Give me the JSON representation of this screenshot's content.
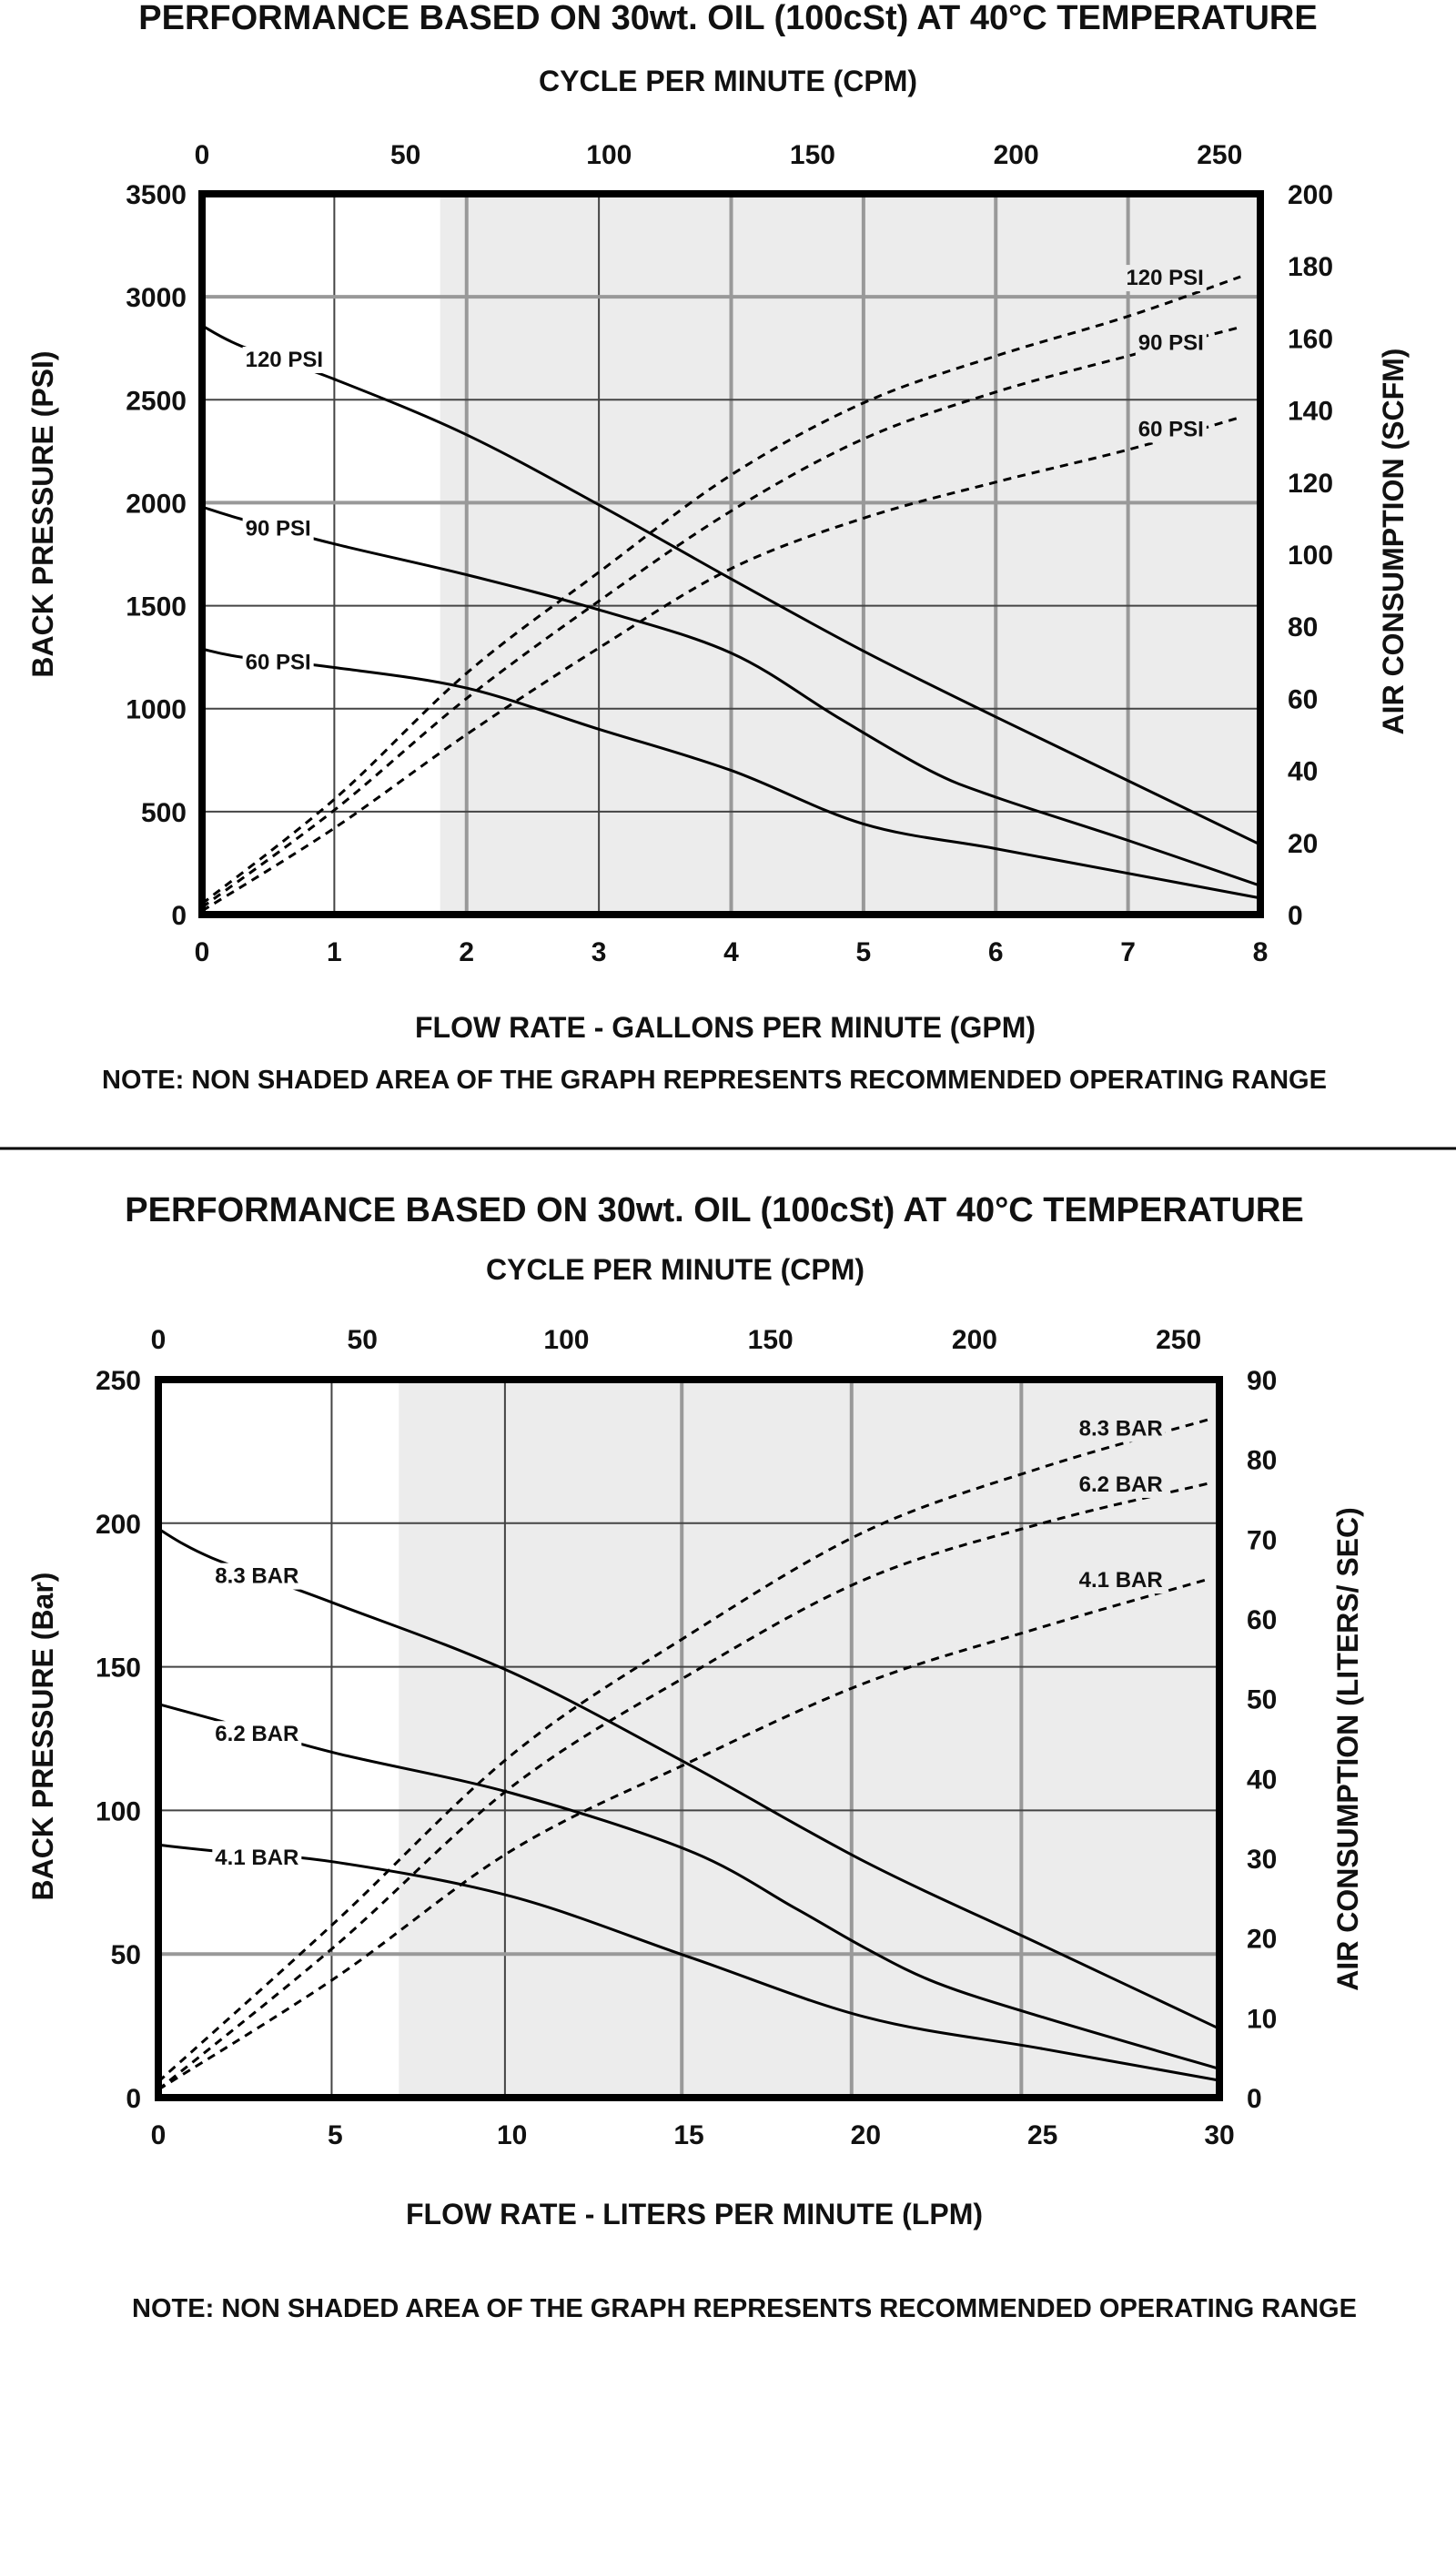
{
  "colors": {
    "shade": "#ececec",
    "grid": "#444444",
    "grid_in_shade": "#999999",
    "frame": "#000000",
    "curve": "#000000",
    "divider": "#000000"
  },
  "chart_data": [
    {
      "type": "line",
      "title": "PERFORMANCE BASED ON 30wt. OIL (100cSt) AT 40°C TEMPERATURE",
      "top_axis_label": "CYCLE PER MINUTE (CPM)",
      "xlabel": "FLOW RATE - GALLONS PER MINUTE (GPM)",
      "ylabel": "BACK PRESSURE (PSI)",
      "y2label": "AIR CONSUMPTION (SCFM)",
      "note": "NOTE: NON SHADED AREA OF THE GRAPH REPRESENTS RECOMMENDED OPERATING RANGE",
      "xlim": [
        0,
        8
      ],
      "ylim": [
        0,
        3500
      ],
      "y2lim": [
        0,
        200
      ],
      "toplim": [
        0,
        260
      ],
      "x_ticks": [
        "0",
        "1",
        "2",
        "3",
        "4",
        "5",
        "6",
        "7",
        "8"
      ],
      "x_tick_values": [
        0,
        1,
        2,
        3,
        4,
        5,
        6,
        7,
        8
      ],
      "y_ticks": [
        "0",
        "500",
        "1000",
        "1500",
        "2000",
        "2500",
        "3000",
        "3500"
      ],
      "y_tick_values": [
        0,
        500,
        1000,
        1500,
        2000,
        2500,
        3000,
        3500
      ],
      "y2_ticks": [
        "0",
        "20",
        "40",
        "60",
        "80",
        "100",
        "120",
        "140",
        "160",
        "180",
        "200"
      ],
      "y2_tick_values": [
        0,
        20,
        40,
        60,
        80,
        100,
        120,
        140,
        160,
        180,
        200
      ],
      "top_ticks": [
        "0",
        "50",
        "100",
        "150",
        "200",
        "250"
      ],
      "top_tick_values": [
        0,
        50,
        100,
        150,
        200,
        250
      ],
      "grid": true,
      "shaded_from_x": 1.8,
      "shaded_grid_x": [
        2,
        4,
        5,
        6,
        7
      ],
      "unshaded_grid_x": [
        1,
        3
      ],
      "shaded_grid_y": [
        2000,
        3000
      ],
      "unshaded_grid_y": [
        500,
        1000,
        1500,
        2500
      ],
      "series": [
        {
          "name": "120 PSI",
          "kind": "back_pressure",
          "axis": "left",
          "label_x": 0.3,
          "label_y": 2700,
          "x": [
            0,
            0.3,
            1,
            2,
            3,
            4,
            5,
            6,
            7,
            8
          ],
          "y": [
            2860,
            2760,
            2600,
            2330,
            1990,
            1630,
            1280,
            960,
            650,
            340
          ]
        },
        {
          "name": "90 PSI",
          "kind": "back_pressure",
          "axis": "left",
          "label_x": 0.3,
          "label_y": 1880,
          "x": [
            0,
            0.3,
            1,
            2,
            3,
            4,
            4.8,
            5.5,
            6,
            7,
            8
          ],
          "y": [
            1980,
            1920,
            1800,
            1650,
            1480,
            1270,
            960,
            700,
            570,
            360,
            140
          ]
        },
        {
          "name": "60 PSI",
          "kind": "back_pressure",
          "axis": "left",
          "label_x": 0.3,
          "label_y": 1230,
          "x": [
            0,
            0.3,
            1,
            2,
            3,
            4,
            5,
            6,
            7,
            8
          ],
          "y": [
            1290,
            1250,
            1200,
            1100,
            900,
            700,
            440,
            320,
            200,
            80
          ]
        },
        {
          "name": "120 PSI",
          "kind": "air_consumption",
          "axis": "right",
          "label_x": 7.6,
          "label_y": 177,
          "x": [
            0,
            1,
            2,
            3,
            4,
            5,
            6,
            7,
            7.85
          ],
          "y": [
            3,
            32,
            67,
            95,
            122,
            142,
            155,
            166,
            177
          ]
        },
        {
          "name": "90 PSI",
          "kind": "air_consumption",
          "axis": "right",
          "label_x": 7.6,
          "label_y": 159,
          "x": [
            0,
            1,
            2,
            3,
            4,
            5,
            6,
            7,
            7.85
          ],
          "y": [
            2,
            29,
            60,
            87,
            112,
            132,
            145,
            155,
            163
          ]
        },
        {
          "name": "60 PSI",
          "kind": "air_consumption",
          "axis": "right",
          "label_x": 7.6,
          "label_y": 135,
          "x": [
            0,
            1,
            2,
            3,
            4,
            5,
            6,
            7,
            7.85
          ],
          "y": [
            1,
            24,
            50,
            74,
            96,
            110,
            120,
            129,
            138
          ]
        }
      ]
    },
    {
      "type": "line",
      "title": "PERFORMANCE BASED ON 30wt. OIL (100cSt) AT 40°C TEMPERATURE",
      "top_axis_label": "CYCLE PER MINUTE (CPM)",
      "xlabel": "FLOW RATE - LITERS PER MINUTE (LPM)",
      "ylabel": "BACK PRESSURE (Bar)",
      "y2label": "AIR CONSUMPTION (LITERS/ SEC)",
      "note": "NOTE: NON SHADED AREA OF THE GRAPH REPRESENTS RECOMMENDED OPERATING RANGE",
      "xlim": [
        0,
        30
      ],
      "ylim": [
        0,
        250
      ],
      "y2lim": [
        0,
        90
      ],
      "toplim": [
        0,
        260
      ],
      "x_ticks": [
        "0",
        "5",
        "10",
        "15",
        "20",
        "25",
        "30"
      ],
      "x_tick_values": [
        0,
        5,
        10,
        15,
        20,
        25,
        30
      ],
      "y_ticks": [
        "0",
        "50",
        "100",
        "150",
        "200",
        "250"
      ],
      "y_tick_values": [
        0,
        50,
        100,
        150,
        200,
        250
      ],
      "y2_ticks": [
        "0",
        "10",
        "20",
        "30",
        "40",
        "50",
        "60",
        "70",
        "80",
        "90"
      ],
      "y2_tick_values": [
        0,
        10,
        20,
        30,
        40,
        50,
        60,
        70,
        80,
        90
      ],
      "top_ticks": [
        "0",
        "50",
        "100",
        "150",
        "200",
        "250"
      ],
      "top_tick_values": [
        0,
        50,
        100,
        150,
        200,
        250
      ],
      "grid": true,
      "shaded_from_x": 6.8,
      "shaded_grid_x": [
        14.8,
        19.6,
        24.4
      ],
      "unshaded_grid_x": [
        4.9,
        9.8
      ],
      "shaded_grid_y": [
        50
      ],
      "unshaded_grid_y": [
        100,
        150,
        200
      ],
      "series": [
        {
          "name": "8.3 BAR",
          "kind": "back_pressure",
          "axis": "left",
          "label_x": 1.5,
          "label_y": 182,
          "x": [
            0,
            1.5,
            5,
            10,
            15,
            20,
            25,
            30
          ],
          "y": [
            198,
            188,
            172,
            148,
            116,
            82,
            53,
            24
          ]
        },
        {
          "name": "6.2 BAR",
          "kind": "back_pressure",
          "axis": "left",
          "label_x": 1.5,
          "label_y": 127,
          "x": [
            0,
            1.5,
            5,
            10,
            15,
            18,
            20,
            22,
            25,
            30
          ],
          "y": [
            137,
            132,
            120,
            106,
            86,
            66,
            52,
            40,
            28,
            10
          ]
        },
        {
          "name": "4.1 BAR",
          "kind": "back_pressure",
          "axis": "left",
          "label_x": 1.5,
          "label_y": 84,
          "x": [
            0,
            1.5,
            5,
            10,
            15,
            20,
            25,
            30
          ],
          "y": [
            88,
            86,
            82,
            70,
            49,
            28,
            17,
            6
          ]
        },
        {
          "name": "8.3 BAR",
          "kind": "air_consumption",
          "axis": "right",
          "label_x": 28.5,
          "label_y": 84,
          "x": [
            0,
            5,
            10,
            15,
            20,
            25,
            29.7
          ],
          "y": [
            2,
            22,
            43,
            58,
            71,
            79,
            85
          ]
        },
        {
          "name": "6.2 BAR",
          "kind": "air_consumption",
          "axis": "right",
          "label_x": 28.5,
          "label_y": 77,
          "x": [
            0,
            5,
            10,
            15,
            20,
            25,
            29.7
          ],
          "y": [
            1,
            19,
            39,
            53,
            65,
            72,
            77
          ]
        },
        {
          "name": "4.1 BAR",
          "kind": "air_consumption",
          "axis": "right",
          "label_x": 28.5,
          "label_y": 65,
          "x": [
            0,
            5,
            10,
            15,
            20,
            25,
            29.7
          ],
          "y": [
            1,
            15,
            31,
            42,
            52,
            59,
            65
          ]
        }
      ]
    }
  ]
}
